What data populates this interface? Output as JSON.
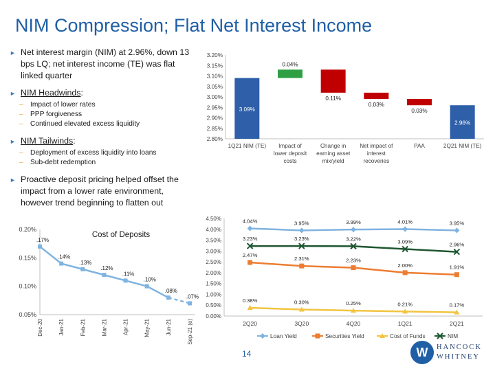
{
  "page": {
    "title": "NIM Compression; Flat Net Interest Income",
    "page_number": "14"
  },
  "bullets": {
    "b1": "Net interest margin (NIM) at 2.96%, down 13 bps LQ; net interest income (TE) was flat linked quarter",
    "headwinds_title": "NIM Headwinds",
    "headwinds": [
      "Impact of lower rates",
      "PPP forgiveness",
      "Continued elevated excess liquidity"
    ],
    "tailwinds_title": "NIM Tailwinds",
    "tailwinds": [
      "Deployment of excess liquidity into loans",
      "Sub-debt redemption"
    ],
    "b4": "Proactive deposit pricing helped offset the impact from a lower rate environment, however trend beginning to flatten out"
  },
  "logo": {
    "line1": "HANCOCK",
    "line2": "WHITNEY",
    "mark": "W"
  },
  "colors": {
    "title_blue": "#1f5fa6",
    "bar_blue": "#2e5fa8",
    "increase_green": "#2ea043",
    "decrease_red": "#c00000",
    "loan_yield": "#7fb3e0",
    "securities_yield": "#ed7d31",
    "cost_of_funds": "#f2c440",
    "nim": "#1e5631",
    "cod_line": "#7fb3e0"
  },
  "chart_data": [
    {
      "type": "bar",
      "subtype": "waterfall",
      "categories": [
        "1Q21 NIM (TE)",
        "Impact of lower deposit costs",
        "Change in earning asset mix/yield",
        "Net impact of interest recoveries",
        "PAA",
        "2Q21 NIM (TE)"
      ],
      "start": [
        2.8,
        3.09,
        3.02,
        2.99,
        2.96,
        2.8
      ],
      "end": [
        3.09,
        3.13,
        3.13,
        3.02,
        2.99,
        2.96
      ],
      "kind": [
        "total",
        "increase",
        "decrease",
        "decrease",
        "decrease",
        "total"
      ],
      "labels": [
        "3.09%",
        "0.04%",
        "0.11%",
        "0.03%",
        "0.03%",
        "2.96%"
      ],
      "yticks": [
        "2.80%",
        "2.85%",
        "2.90%",
        "2.95%",
        "3.00%",
        "3.05%",
        "3.10%",
        "3.15%",
        "3.20%"
      ],
      "ylim": [
        2.8,
        3.2
      ]
    },
    {
      "type": "line",
      "title": "Cost of Deposits",
      "categories": [
        "Dec-20",
        "Jan-21",
        "Feb-21",
        "Mar-21",
        "Apr-21",
        "May-21",
        "Jun-21",
        "Sep-21 (e)"
      ],
      "values": [
        0.17,
        0.14,
        0.13,
        0.12,
        0.11,
        0.1,
        0.08,
        0.07
      ],
      "labels": [
        ".17%",
        ".14%",
        ".13%",
        ".12%",
        ".11%",
        ".10%",
        ".08%",
        ".07%"
      ],
      "estimated_from_index": 6,
      "yticks": [
        "0.05%",
        "0.10%",
        "0.15%",
        "0.20%"
      ],
      "ylim": [
        0.05,
        0.2
      ]
    },
    {
      "type": "line",
      "categories": [
        "2Q20",
        "3Q20",
        "4Q20",
        "1Q21",
        "2Q21"
      ],
      "series": [
        {
          "name": "Loan Yield",
          "values": [
            4.04,
            3.95,
            3.99,
            4.01,
            3.95
          ],
          "labels": [
            "4.04%",
            "3.95%",
            "3.99%",
            "4.01%",
            "3.95%"
          ],
          "marker": "diamond"
        },
        {
          "name": "Securities Yield",
          "values": [
            2.47,
            2.31,
            2.23,
            2.0,
            1.91
          ],
          "labels": [
            "2.47%",
            "2.31%",
            "2.23%",
            "2.00%",
            "1.91%"
          ],
          "marker": "square"
        },
        {
          "name": "Cost of Funds",
          "values": [
            0.38,
            0.3,
            0.25,
            0.21,
            0.17
          ],
          "labels": [
            "0.38%",
            "0.30%",
            "0.25%",
            "0.21%",
            "0.17%"
          ],
          "marker": "triangle"
        },
        {
          "name": "NIM",
          "values": [
            3.23,
            3.23,
            3.22,
            3.09,
            2.96
          ],
          "labels": [
            "3.23%",
            "3.23%",
            "3.22%",
            "3.09%",
            "2.96%"
          ],
          "marker": "x"
        }
      ],
      "yticks": [
        "0.00%",
        "0.50%",
        "1.00%",
        "1.50%",
        "2.00%",
        "2.50%",
        "3.00%",
        "3.50%",
        "4.00%",
        "4.50%"
      ],
      "ylim": [
        0,
        4.5
      ],
      "legend": "bottom"
    }
  ]
}
